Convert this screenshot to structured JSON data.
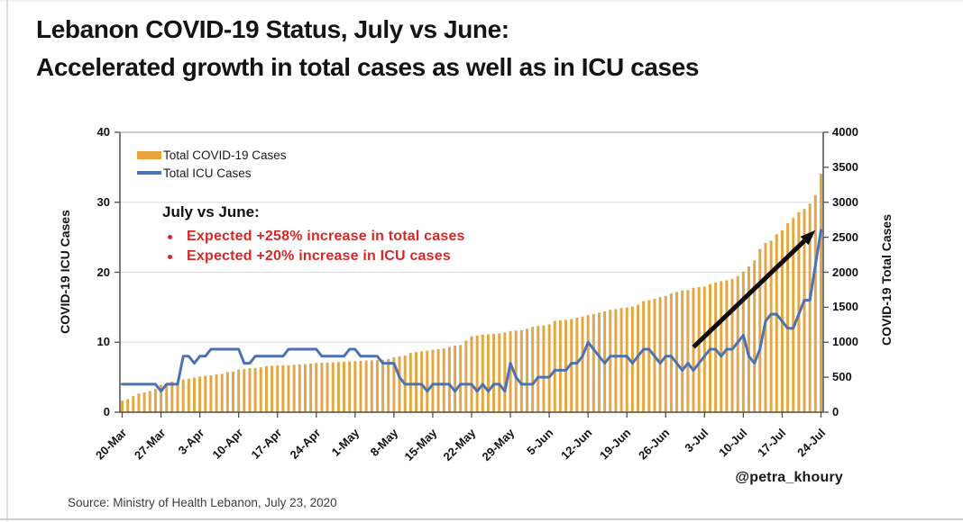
{
  "page": {
    "title_line1": "Lebanon COVID-19 Status, July vs June:",
    "title_line2": "Accelerated growth in total cases as well as in ICU cases",
    "attribution": "@petra_khoury",
    "source": "Source: Ministry of Health Lebanon, July 23, 2020"
  },
  "chart_data": {
    "type": "bar",
    "subtype": "combo-bar-line-dual-axis",
    "x_start": "20-Mar",
    "x_end": "24-Jul",
    "x_tick_labels": [
      "20-Mar",
      "27-Mar",
      "3-Apr",
      "10-Apr",
      "17-Apr",
      "24-Apr",
      "1-May",
      "8-May",
      "15-May",
      "22-May",
      "29-May",
      "5-Jun",
      "12-Jun",
      "19-Jun",
      "26-Jun",
      "3-Jul",
      "10-Jul",
      "17-Jul",
      "24-Jul"
    ],
    "x_tick_interval_days": 7,
    "left_axis": {
      "title": "COVID-19 ICU Cases",
      "min": 0,
      "max": 40,
      "ticks": [
        0,
        10,
        20,
        30,
        40
      ]
    },
    "right_axis": {
      "title": "COVID-19 Total Cases",
      "min": 0,
      "max": 4000,
      "ticks": [
        0,
        500,
        1000,
        1500,
        2000,
        2500,
        3000,
        3500,
        4000
      ]
    },
    "grid": "horizontal",
    "legend_position": "top-left-inside",
    "series": [
      {
        "name": "Total COVID-19 Cases",
        "type": "bar",
        "axis": "right",
        "color": "#E3A746",
        "values": [
          163,
          187,
          230,
          267,
          282,
          304,
          333,
          391,
          412,
          438,
          446,
          470,
          479,
          494,
          508,
          520,
          527,
          541,
          548,
          575,
          582,
          609,
          619,
          630,
          632,
          641,
          658,
          663,
          668,
          672,
          673,
          677,
          682,
          688,
          696,
          704,
          707,
          710,
          713,
          717,
          721,
          725,
          729,
          733,
          740,
          741,
          744,
          750,
          761,
          784,
          796,
          809,
          845,
          859,
          870,
          878,
          891,
          902,
          911,
          931,
          954,
          961,
          1024,
          1086,
          1097,
          1109,
          1114,
          1119,
          1125,
          1140,
          1161,
          1168,
          1172,
          1191,
          1220,
          1233,
          1242,
          1256,
          1306,
          1312,
          1320,
          1331,
          1350,
          1368,
          1388,
          1402,
          1422,
          1442,
          1464,
          1473,
          1489,
          1495,
          1510,
          1536,
          1587,
          1603,
          1622,
          1644,
          1662,
          1697,
          1719,
          1740,
          1745,
          1778,
          1788,
          1796,
          1830,
          1855,
          1873,
          1885,
          1907,
          1946,
          2011,
          2082,
          2168,
          2334,
          2419,
          2452,
          2542,
          2599,
          2700,
          2775,
          2859,
          2905,
          2980,
          3104,
          3407
        ]
      },
      {
        "name": "Total ICU Cases",
        "type": "line",
        "axis": "left",
        "color": "#4C72B4",
        "values": [
          4,
          4,
          4,
          4,
          4,
          4,
          4,
          3,
          4,
          4,
          4,
          8,
          8,
          7,
          8,
          8,
          9,
          9,
          9,
          9,
          9,
          9,
          7,
          7,
          8,
          8,
          8,
          8,
          8,
          8,
          9,
          9,
          9,
          9,
          9,
          9,
          8,
          8,
          8,
          8,
          8,
          9,
          9,
          8,
          8,
          8,
          8,
          7,
          7,
          7,
          5,
          4,
          4,
          4,
          4,
          3,
          4,
          4,
          4,
          4,
          3,
          4,
          4,
          4,
          3,
          4,
          3,
          4,
          4,
          3,
          7,
          5,
          4,
          4,
          4,
          5,
          5,
          5,
          6,
          6,
          6,
          7,
          7,
          8,
          10,
          9,
          8,
          7,
          8,
          8,
          8,
          8,
          7,
          8,
          9,
          9,
          8,
          7,
          8,
          8,
          7,
          6,
          7,
          6,
          7,
          8,
          9,
          9,
          8,
          9,
          9,
          10,
          11,
          8,
          7,
          9,
          13,
          14,
          14,
          13,
          12,
          12,
          14,
          16,
          16,
          21,
          26
        ]
      }
    ],
    "annotation": {
      "heading": "July vs June:",
      "bullets": [
        "Expected +258% increase in total cases",
        "Expected +20% increase in ICU cases"
      ],
      "color": "#D92727"
    },
    "arrow": {
      "from_day": 103,
      "from_icu": 9.3,
      "to_day": 125,
      "to_icu": 26,
      "color": "#0d0d0d"
    }
  }
}
